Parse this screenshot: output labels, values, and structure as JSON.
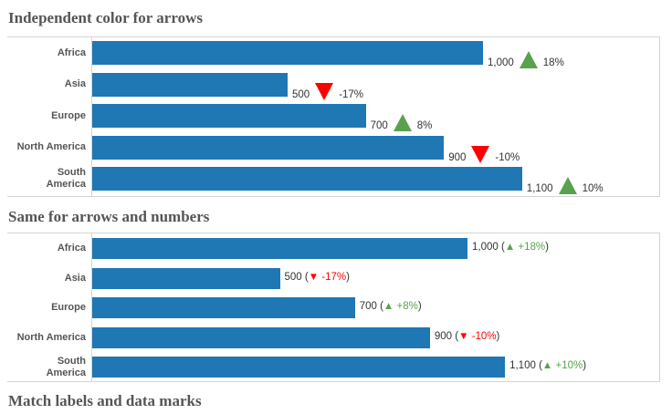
{
  "colors": {
    "bar": "#1f77b4",
    "up": "#59a14f",
    "down": "#ff0000"
  },
  "chart_data": [
    {
      "type": "bar",
      "title": "Independent color for arrows",
      "orientation": "horizontal",
      "categories": [
        "Africa",
        "Asia",
        "Europe",
        "North America",
        "South America"
      ],
      "values": [
        1000,
        500,
        700,
        900,
        1100
      ],
      "value_labels": [
        "1,000",
        "500",
        "700",
        "900",
        "1,100"
      ],
      "change": [
        "18%",
        "-17%",
        "8%",
        "-10%",
        "10%"
      ],
      "direction": [
        "up",
        "down",
        "up",
        "down",
        "up"
      ]
    },
    {
      "type": "bar",
      "title": "Same for arrows and numbers",
      "orientation": "horizontal",
      "categories": [
        "Africa",
        "Asia",
        "Europe",
        "North America",
        "South America"
      ],
      "values": [
        1000,
        500,
        700,
        900,
        1100
      ],
      "value_labels": [
        "1,000",
        "500",
        "700",
        "900",
        "1,100"
      ],
      "change": [
        "+18%",
        "-17%",
        "+8%",
        "-10%",
        "+10%"
      ],
      "direction": [
        "up",
        "down",
        "up",
        "down",
        "up"
      ]
    }
  ],
  "third_title": "Match labels and data marks"
}
